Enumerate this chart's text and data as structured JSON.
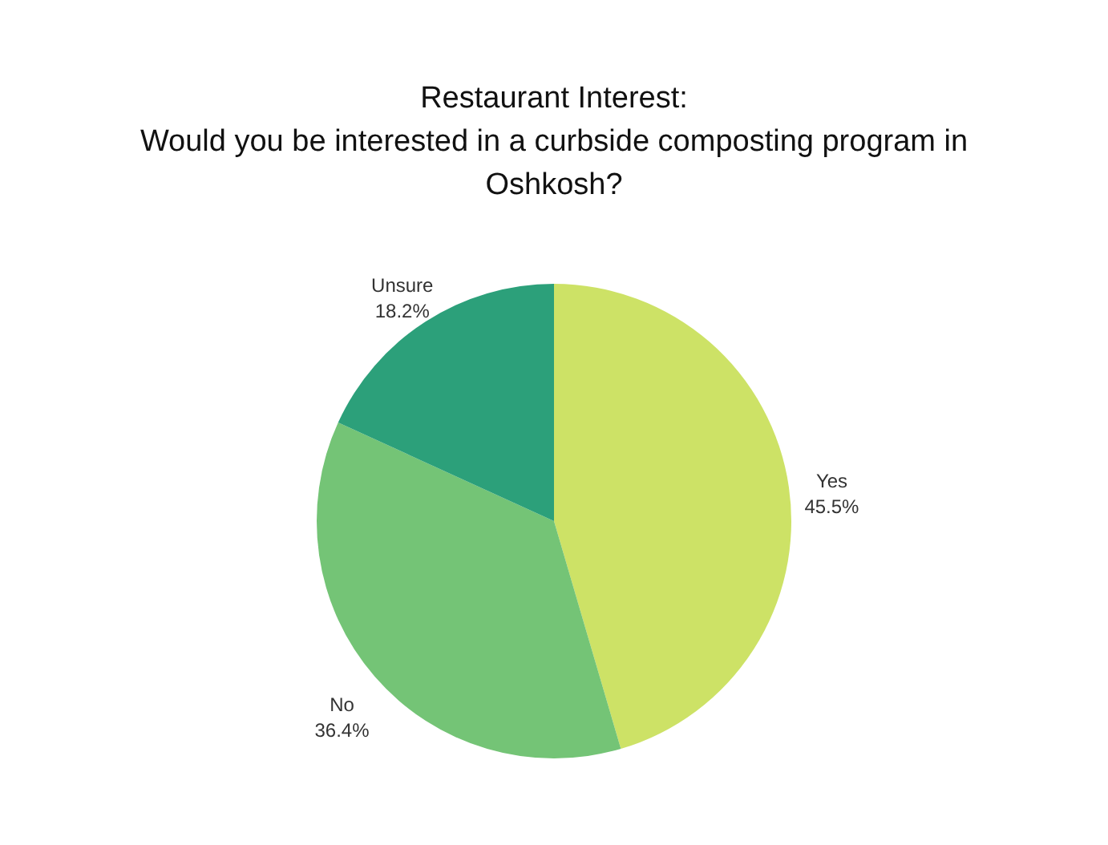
{
  "chart_data": {
    "type": "pie",
    "title": "Restaurant Interest:\nWould you be interested in a curbside composting program in\nOshkosh?",
    "categories": [
      "Yes",
      "No",
      "Unsure"
    ],
    "values": [
      45.5,
      36.4,
      18.2
    ],
    "colors": [
      "#cde266",
      "#74c476",
      "#2ca07a"
    ],
    "value_labels": [
      "45.5%",
      "36.4%",
      "18.2%"
    ]
  }
}
